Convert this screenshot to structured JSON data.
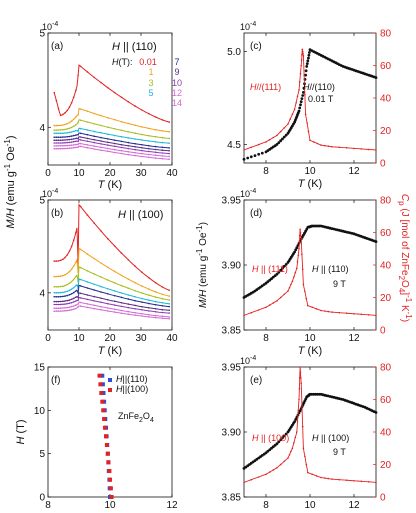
{
  "colors": {
    "black": "#111111",
    "red": "#e32222",
    "blue": "#2b4fd6",
    "orange": "#f2a11f",
    "olive": "#a7bd1c",
    "cyan": "#1fb7d8",
    "darkblue": "#1e2e8f",
    "purple": "#5a2a86",
    "violet": "#8a3db0",
    "magenta": "#d36ad6",
    "grid": "#bdbdbd"
  },
  "labels": {
    "exp": "10",
    "exp_sup": "-4",
    "ylabel_left_main": "M/H",
    "ylabel_left_unit": " (emu g",
    "ylabel_left_unit_sup": "-1",
    "ylabel_left_unit2": " Oe",
    "ylabel_left_unit2_sup": "-1",
    "ylabel_left_close": ")",
    "ylabel_right": "C",
    "ylabel_right_sub": "p",
    "ylabel_right_rest": " (J [mol of ZnFe",
    "ylabel_right_sub2": "2",
    "ylabel_right_rest2": "O",
    "ylabel_right_sub3": "4",
    "ylabel_right_rest3": "]",
    "ylabel_right_sup": "-1",
    "ylabel_right_rest4": " K",
    "ylabel_right_sup2": "-1",
    "ylabel_right_close": ")",
    "xlabel_T": "T",
    "xlabel_unit": " (K)",
    "ylabel_H": "H",
    "ylabel_H_unit": " (T)"
  },
  "chart_data": [
    {
      "panel": "a",
      "type": "line",
      "title": "H || (110)",
      "legend_title": "H(T):",
      "xlabel": "T (K)",
      "ylabel": "M/H (emu g^-1 Oe^-1)",
      "xlim": [
        0,
        40
      ],
      "ylim": [
        3.6,
        5.0
      ],
      "y_exponent": "10^-4",
      "x_ticks": [
        0,
        10,
        20,
        30,
        40
      ],
      "y_ticks": [
        4,
        5
      ],
      "series": [
        {
          "name": "0.01",
          "color": "red"
        },
        {
          "name": "1",
          "color": "orange"
        },
        {
          "name": "3",
          "color": "olive"
        },
        {
          "name": "5",
          "color": "cyan"
        },
        {
          "name": "7",
          "color": "darkblue"
        },
        {
          "name": "9",
          "color": "purple"
        },
        {
          "name": "10",
          "color": "violet"
        },
        {
          "name": "12",
          "color": "magenta"
        },
        {
          "name": "14",
          "color": "magenta"
        }
      ],
      "series_shape": [
        {
          "low": 4.05,
          "peak": 4.66,
          "kink": 4.55,
          "end": 4.05,
          "rise": 0.46
        },
        {
          "low": 4.0,
          "peak": 4.2,
          "kink": 4.13,
          "end": 3.95,
          "rise": 0.12
        },
        {
          "low": 3.96,
          "peak": 4.08,
          "kink": 4.05,
          "end": 3.88,
          "rise": 0.07
        },
        {
          "low": 3.93,
          "peak": 3.99,
          "kink": 3.96,
          "end": 3.83,
          "rise": 0.04
        },
        {
          "low": 3.89,
          "peak": 3.94,
          "kink": 3.92,
          "end": 3.78,
          "rise": 0.03
        },
        {
          "low": 3.86,
          "peak": 3.9,
          "kink": 3.88,
          "end": 3.75,
          "rise": 0.02
        },
        {
          "low": 3.83,
          "peak": 3.87,
          "kink": 3.85,
          "end": 3.72,
          "rise": 0.02
        },
        {
          "low": 3.8,
          "peak": 3.83,
          "kink": 3.82,
          "end": 3.69,
          "rise": 0.02
        },
        {
          "low": 3.77,
          "peak": 3.8,
          "kink": 3.79,
          "end": 3.66,
          "rise": 0.02
        }
      ]
    },
    {
      "panel": "b",
      "type": "line",
      "title": "H || (100)",
      "xlabel": "T (K)",
      "xlim": [
        0,
        40
      ],
      "ylim": [
        3.6,
        5.0
      ],
      "y_exponent": "10^-4",
      "x_ticks": [
        0,
        10,
        20,
        30,
        40
      ],
      "y_ticks": [
        4,
        5
      ],
      "series_colors": [
        "red",
        "orange",
        "olive",
        "cyan",
        "darkblue",
        "purple",
        "violet",
        "magenta",
        "magenta"
      ],
      "series_shape": [
        {
          "low": 4.3,
          "peak": 4.95,
          "kink": 4.32,
          "end": 4.02,
          "rise": 0.28
        },
        {
          "low": 4.15,
          "peak": 4.48,
          "kink": 4.22,
          "end": 3.96,
          "rise": 0.17
        },
        {
          "low": 4.05,
          "peak": 4.28,
          "kink": 4.12,
          "end": 3.92,
          "rise": 0.1
        },
        {
          "low": 3.99,
          "peak": 4.15,
          "kink": 4.05,
          "end": 3.88,
          "rise": 0.07
        },
        {
          "low": 3.95,
          "peak": 4.08,
          "kink": 4.0,
          "end": 3.85,
          "rise": 0.05
        },
        {
          "low": 3.9,
          "peak": 4.0,
          "kink": 3.95,
          "end": 3.81,
          "rise": 0.04
        },
        {
          "low": 3.87,
          "peak": 3.95,
          "kink": 3.92,
          "end": 3.78,
          "rise": 0.03
        },
        {
          "low": 3.83,
          "peak": 3.9,
          "kink": 3.88,
          "end": 3.74,
          "rise": 0.03
        },
        {
          "low": 3.8,
          "peak": 3.86,
          "kink": 3.85,
          "end": 3.72,
          "rise": 0.02
        }
      ]
    },
    {
      "panel": "c",
      "type": "line",
      "xlabel": "T (K)",
      "xlim": [
        7,
        13
      ],
      "ylim": [
        4.4,
        5.1
      ],
      "y_exponent": "10^-4",
      "x_ticks": [
        8,
        10,
        12
      ],
      "y_ticks": [
        4.5,
        5.0
      ],
      "y_tick_labels": [
        "4.5",
        "5.0"
      ],
      "y2lim": [
        0,
        80
      ],
      "y2_ticks": [
        0,
        20,
        40,
        60,
        80
      ],
      "annotations": [
        {
          "text": "H//(111)",
          "color": "red"
        },
        {
          "text": "H//(110)",
          "color": "black"
        },
        {
          "text": "0.01 T",
          "color": "black"
        }
      ],
      "series": [
        {
          "name": "M/H",
          "axis": "left",
          "color": "black",
          "x": [
            7.0,
            8.0,
            8.5,
            9.0,
            9.3,
            9.5,
            9.7,
            9.85,
            10.0,
            10.5,
            11.0,
            11.5,
            12.0,
            12.5,
            13.0
          ],
          "y": [
            4.42,
            4.46,
            4.5,
            4.56,
            4.62,
            4.68,
            4.78,
            4.92,
            5.01,
            4.98,
            4.95,
            4.92,
            4.9,
            4.88,
            4.86
          ]
        },
        {
          "name": "Cp",
          "axis": "right",
          "color": "red",
          "x": [
            7.0,
            8.0,
            8.5,
            9.0,
            9.3,
            9.5,
            9.6,
            9.65,
            9.7,
            9.8,
            10.0,
            10.5,
            11.0,
            12.0,
            13.0
          ],
          "y": [
            8,
            13,
            17,
            24,
            33,
            45,
            60,
            70,
            66,
            30,
            14,
            11,
            10,
            9,
            8
          ]
        }
      ]
    },
    {
      "panel": "d",
      "type": "line",
      "xlabel": "T (K)",
      "xlim": [
        7,
        13
      ],
      "ylim": [
        3.85,
        3.95
      ],
      "y_exponent": "10^-4",
      "x_ticks": [
        8,
        10,
        12
      ],
      "y_ticks": [
        3.85,
        3.9,
        3.95
      ],
      "y_tick_labels": [
        "3.85",
        "3.90",
        "3.95"
      ],
      "y2lim": [
        0,
        80
      ],
      "y2_ticks": [
        0,
        20,
        40,
        60,
        80
      ],
      "annotations": [
        {
          "text": "H || (111)",
          "color": "red"
        },
        {
          "text": "H || (110)",
          "color": "black"
        },
        {
          "text": "9 T",
          "color": "black"
        }
      ],
      "series": [
        {
          "name": "M/H",
          "axis": "left",
          "color": "black",
          "x": [
            7.0,
            7.5,
            8.0,
            8.5,
            9.0,
            9.3,
            9.6,
            9.9,
            10.1,
            10.5,
            11.0,
            11.5,
            12.0,
            12.5,
            13.0
          ],
          "y": [
            3.875,
            3.88,
            3.886,
            3.893,
            3.902,
            3.91,
            3.92,
            3.929,
            3.93,
            3.93,
            3.928,
            3.926,
            3.924,
            3.921,
            3.918
          ]
        },
        {
          "name": "Cp",
          "axis": "right",
          "color": "red",
          "x": [
            7.0,
            8.0,
            8.5,
            9.0,
            9.2,
            9.4,
            9.5,
            9.55,
            9.6,
            9.7,
            9.9,
            10.5,
            11.0,
            12.0,
            13.0
          ],
          "y": [
            9,
            14,
            18,
            24,
            30,
            38,
            50,
            62,
            56,
            28,
            15,
            12,
            11,
            10,
            9
          ]
        }
      ]
    },
    {
      "panel": "e",
      "type": "line",
      "xlabel": "T (K)",
      "xlim": [
        7,
        13
      ],
      "ylim": [
        3.85,
        3.95
      ],
      "y_exponent": "10^-4",
      "x_ticks": [
        8,
        10,
        12
      ],
      "y_ticks": [
        3.85,
        3.9,
        3.95
      ],
      "y_tick_labels": [
        "3.85",
        "3.90",
        "3.95"
      ],
      "y2lim": [
        0,
        80
      ],
      "y2_ticks": [
        0,
        20,
        40,
        60,
        80
      ],
      "annotations": [
        {
          "text": "H || (100)",
          "color": "red"
        },
        {
          "text": "H || (100)",
          "color": "black"
        },
        {
          "text": "9 T",
          "color": "black"
        }
      ],
      "series": [
        {
          "name": "M/H",
          "axis": "left",
          "color": "black",
          "x": [
            7.0,
            7.5,
            8.0,
            8.5,
            9.0,
            9.3,
            9.6,
            9.85,
            10.0,
            10.5,
            11.0,
            11.5,
            12.0,
            12.5,
            13.0
          ],
          "y": [
            3.872,
            3.878,
            3.884,
            3.891,
            3.9,
            3.908,
            3.918,
            3.927,
            3.929,
            3.929,
            3.927,
            3.925,
            3.922,
            3.919,
            3.915
          ]
        },
        {
          "name": "Cp",
          "axis": "right",
          "color": "red",
          "x": [
            7.0,
            8.0,
            8.5,
            9.0,
            9.2,
            9.4,
            9.5,
            9.55,
            9.6,
            9.7,
            9.9,
            10.5,
            11.0,
            12.0,
            13.0
          ],
          "y": [
            9,
            14,
            18,
            24,
            30,
            40,
            60,
            80,
            70,
            30,
            15,
            12,
            11,
            10,
            9
          ]
        }
      ]
    },
    {
      "panel": "f",
      "type": "scatter",
      "xlabel": "T (K)",
      "ylabel": "H (T)",
      "xlim": [
        8,
        12
      ],
      "ylim": [
        0,
        15
      ],
      "x_ticks": [
        8,
        10,
        12
      ],
      "y_ticks": [
        0,
        5,
        10,
        15
      ],
      "annotation": "ZnFe2O4",
      "series": [
        {
          "name": "H||(110)",
          "color": "blue",
          "x": [
            10.0,
            9.99,
            9.98,
            9.96,
            9.95,
            9.93,
            9.91,
            9.89,
            9.87,
            9.85,
            9.83,
            9.81,
            9.79,
            9.77,
            9.75
          ],
          "y": [
            0,
            1,
            2,
            3,
            4,
            5,
            6,
            7,
            8,
            9,
            10,
            11,
            12,
            13,
            14
          ]
        },
        {
          "name": "H||(100)",
          "color": "red",
          "x": [
            10.05,
            10.03,
            10.0,
            9.98,
            9.95,
            9.93,
            9.9,
            9.87,
            9.84,
            9.81,
            9.78,
            9.75,
            9.72,
            9.69,
            9.66
          ],
          "y": [
            0,
            1,
            2,
            3,
            4,
            5,
            6,
            7,
            8,
            9,
            10,
            11,
            12,
            13,
            14
          ]
        }
      ]
    }
  ]
}
